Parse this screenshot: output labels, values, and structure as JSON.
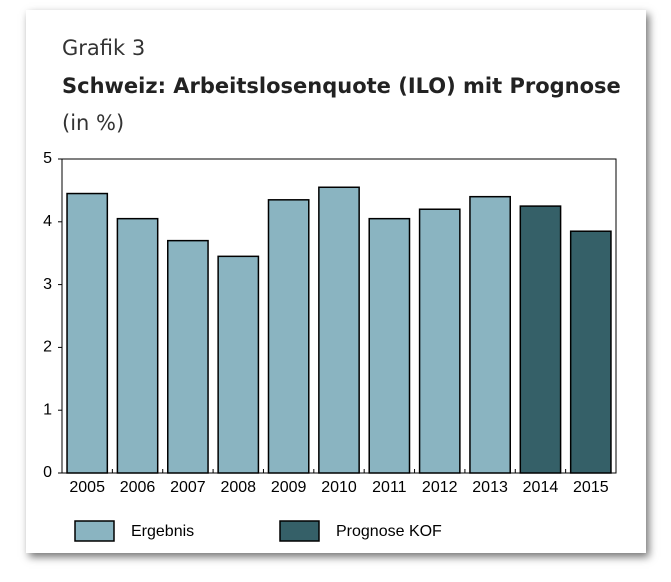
{
  "chart_data": {
    "type": "bar",
    "label": "Grafik 3",
    "title": "Schweiz: Arbeitslosenquote (ILO) mit Prognose",
    "subtitle": "(in %)",
    "categories": [
      "2005",
      "2006",
      "2007",
      "2008",
      "2009",
      "2010",
      "2011",
      "2012",
      "2013",
      "2014",
      "2015"
    ],
    "series": [
      {
        "name": "Ergebnis",
        "color": "#8ab4c1",
        "values": [
          4.45,
          4.05,
          3.7,
          3.45,
          4.35,
          4.55,
          4.05,
          4.2,
          4.4,
          null,
          null
        ]
      },
      {
        "name": "Prognose KOF",
        "color": "#356068",
        "values": [
          null,
          null,
          null,
          null,
          null,
          null,
          null,
          null,
          null,
          4.25,
          3.85
        ]
      }
    ],
    "ylim": [
      0,
      5
    ],
    "yticks": [
      0,
      1,
      2,
      3,
      4,
      5
    ]
  }
}
